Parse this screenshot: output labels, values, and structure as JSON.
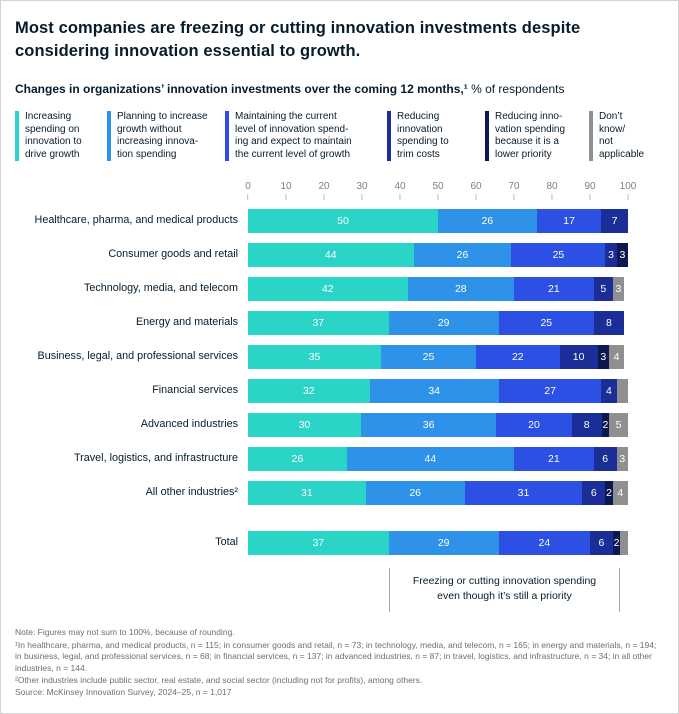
{
  "header": {
    "title": "Most companies are freezing or cutting innovation investments despite considering innovation essential to growth.",
    "subtitle_bold": "Changes in organizations’ innovation investments over the coming 12 months,¹",
    "subtitle_regular": " % of respondents"
  },
  "legend": {
    "items": [
      {
        "label": "Increasing\nspending on\ninnovation to\ndrive growth",
        "color": "#2ad4c6"
      },
      {
        "label": "Planning to increase\ngrowth without\nincreasing innova-\ntion spending",
        "color": "#2e93e8"
      },
      {
        "label": "Maintaining the current\nlevel of innovation spend-\ning and expect to maintain\nthe current level of growth",
        "color": "#2c4fe4"
      },
      {
        "label": "Reducing\ninnovation\nspending to\ntrim costs",
        "color": "#1b2d96"
      },
      {
        "label": "Reducing inno-\nvation spending\nbecause it is a\nlower priority",
        "color": "#0d1850"
      },
      {
        "label": "Don’t\nknow/\nnot\napplicable",
        "color": "#8f8f8f"
      }
    ]
  },
  "chart_data": {
    "type": "bar",
    "stacked": true,
    "orientation": "horizontal",
    "unit": "% of respondents",
    "xlim": [
      0,
      100
    ],
    "x_ticks": [
      0,
      10,
      20,
      30,
      40,
      50,
      60,
      70,
      80,
      90,
      100
    ],
    "series_names": [
      "Increasing spending on innovation to drive growth",
      "Planning to increase growth without increasing innovation spending",
      "Maintaining the current level of innovation spending and expect to maintain the current level of growth",
      "Reducing innovation spending to trim costs",
      "Reducing innovation spending because it is a lower priority",
      "Don’t know/not applicable"
    ],
    "rows": [
      {
        "category": "Healthcare, pharma, and medical products",
        "values": [
          50,
          26,
          17,
          7,
          0,
          0
        ],
        "labels": [
          "50",
          "26",
          "17",
          "7",
          "",
          ""
        ]
      },
      {
        "category": "Consumer goods and retail",
        "values": [
          44,
          26,
          25,
          3,
          3,
          0
        ],
        "labels": [
          "44",
          "26",
          "25",
          "3",
          "3",
          ""
        ]
      },
      {
        "category": "Technology, media, and telecom",
        "values": [
          42,
          28,
          21,
          5,
          0,
          3
        ],
        "labels": [
          "42",
          "28",
          "21",
          "5",
          "",
          "3"
        ]
      },
      {
        "category": "Energy and materials",
        "values": [
          37,
          29,
          25,
          8,
          0,
          0
        ],
        "labels": [
          "37",
          "29",
          "25",
          "8",
          "",
          ""
        ]
      },
      {
        "category": "Business, legal, and professional services",
        "values": [
          35,
          25,
          22,
          10,
          3,
          4
        ],
        "labels": [
          "35",
          "25",
          "22",
          "10",
          "3",
          "4"
        ]
      },
      {
        "category": "Financial services",
        "values": [
          32,
          34,
          27,
          4,
          0,
          3
        ],
        "labels": [
          "32",
          "34",
          "27",
          "4",
          "",
          ""
        ]
      },
      {
        "category": "Advanced industries",
        "values": [
          30,
          36,
          20,
          8,
          2,
          5
        ],
        "labels": [
          "30",
          "36",
          "20",
          "8",
          "2",
          "5"
        ]
      },
      {
        "category": "Travel, logistics, and infrastructure",
        "values": [
          26,
          44,
          21,
          6,
          0,
          3
        ],
        "labels": [
          "26",
          "44",
          "21",
          "6",
          "",
          "3"
        ]
      },
      {
        "category": "All other industries²",
        "values": [
          31,
          26,
          31,
          6,
          2,
          4
        ],
        "labels": [
          "31",
          "26",
          "31",
          "6",
          "2",
          "4"
        ]
      }
    ],
    "total": {
      "category": "Total",
      "values": [
        37,
        29,
        24,
        6,
        2,
        2
      ],
      "labels": [
        "37",
        "29",
        "24",
        "6",
        "2",
        ""
      ]
    },
    "annotation": {
      "text": "Freezing or cutting innovation spending\neven though it’s still a priority",
      "span_start_pct": 37,
      "span_end_pct": 98
    }
  },
  "footnotes": [
    "Note: Figures may not sum to 100%, because of rounding.",
    "¹In healthcare, pharma, and medical products, n = 115; in consumer goods and retail, n = 73; in technology, media, and telecom, n = 165; in energy and materials, n = 194; in business, legal, and professional services, n = 68; in financial services, n = 137; in advanced industries, n = 87; in travel, logistics, and infrastructure, n = 34; in all other industries, n = 144.",
    "²Other industries include public sector, real estate, and social sector (including not for profits), among others.",
    "Source: McKinsey Innovation Survey, 2024–25, n = 1,017"
  ]
}
